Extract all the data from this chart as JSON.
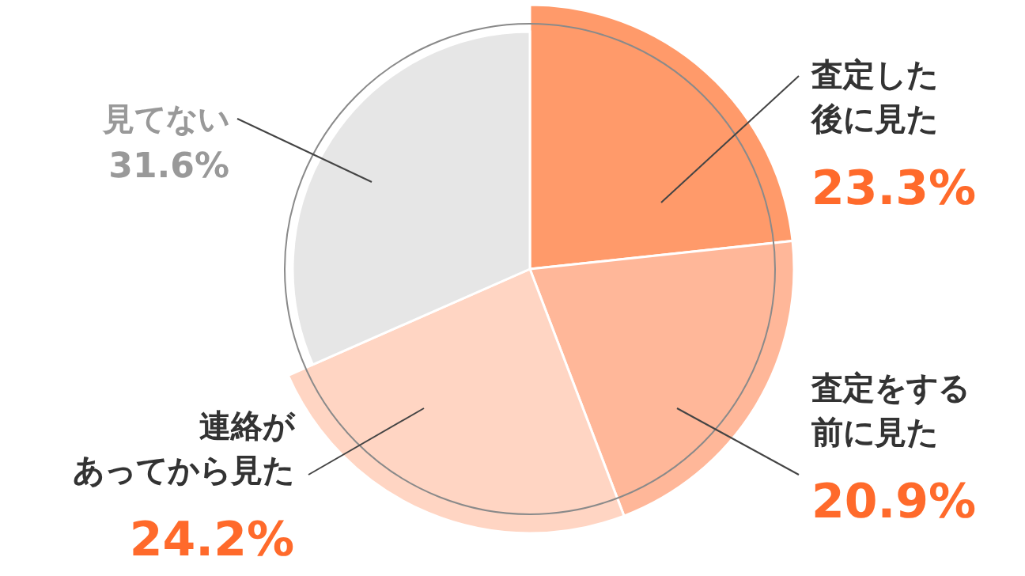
{
  "chart_data": {
    "type": "pie",
    "categories": [
      "査定した後に見た",
      "査定をする前に見た",
      "連絡があってから見た",
      "見てない"
    ],
    "values": [
      23.3,
      20.9,
      24.2,
      31.6
    ],
    "colors": [
      "#ff9a6a",
      "#ffb799",
      "#ffd5c3",
      "#e6e6e6"
    ],
    "value_labels": [
      "23.3%",
      "20.9%",
      "24.2%",
      "31.6%"
    ]
  }
}
